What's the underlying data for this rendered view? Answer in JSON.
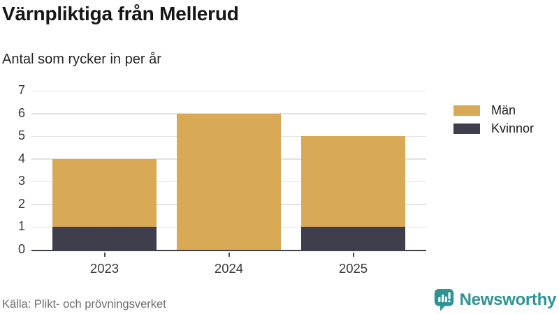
{
  "header": {
    "title": "Värnpliktiga från Mellerud",
    "subtitle": "Antal som rycker in per år"
  },
  "chart_data": {
    "type": "bar",
    "stacked": true,
    "title": "Värnpliktiga från Mellerud",
    "subtitle": "Antal som rycker in per år",
    "categories": [
      "2023",
      "2024",
      "2025"
    ],
    "series": [
      {
        "name": "Män",
        "color": "#d9aa55",
        "values": [
          3,
          6,
          4
        ]
      },
      {
        "name": "Kvinnor",
        "color": "#3f3e4d",
        "values": [
          1,
          0,
          1
        ]
      }
    ],
    "stack_totals": [
      4,
      6,
      5
    ],
    "xlabel": "",
    "ylabel": "",
    "ylim": [
      0,
      7
    ],
    "yticks": [
      0,
      1,
      2,
      3,
      4,
      5,
      6,
      7
    ],
    "grid": true,
    "legend_position": "right"
  },
  "footer": {
    "source": "Källa: Plikt- och prövningsverket",
    "brand": "Newsworthy"
  },
  "colors": {
    "men": "#d9aa55",
    "women": "#3f3e4d",
    "axis": "#3f3e4d",
    "gridline": "#e3e3e3",
    "brand_teal": "#2e9493",
    "title_text": "#161616",
    "muted_text": "#6e6e6e"
  },
  "icons": {
    "brand_logo": "newsworthy-speech-bubble-barchart-icon"
  }
}
